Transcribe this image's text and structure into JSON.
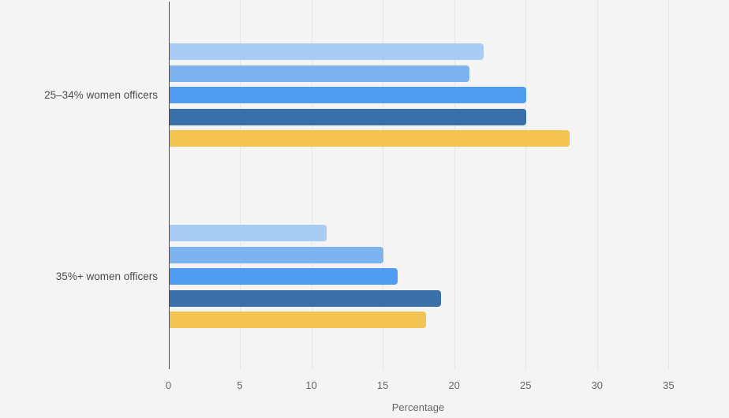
{
  "page": {
    "background_color": "#f4f4f4"
  },
  "chart_data": {
    "type": "bar",
    "orientation": "horizontal",
    "xlabel": "Percentage",
    "categories": [
      "25–34% women officers",
      "35%+ women officers"
    ],
    "series": [
      {
        "color": "#a9ccf5",
        "values": [
          22,
          11
        ]
      },
      {
        "color": "#7db4f0",
        "values": [
          21,
          15
        ]
      },
      {
        "color": "#4f9cf0",
        "values": [
          25,
          16
        ]
      },
      {
        "color": "#3b6fa9",
        "values": [
          25,
          19
        ]
      },
      {
        "color": "#f4c452",
        "values": [
          28,
          18
        ]
      }
    ],
    "x_ticks": [
      0,
      5,
      10,
      15,
      20,
      25,
      30,
      35
    ],
    "xlim": [
      0,
      35
    ],
    "grid": true,
    "legend": "none",
    "axis_color": "#4d4d4d",
    "grid_color": "#e7e7e7",
    "category_label_color": "#4d4d4d",
    "tick_label_color": "#666666"
  }
}
